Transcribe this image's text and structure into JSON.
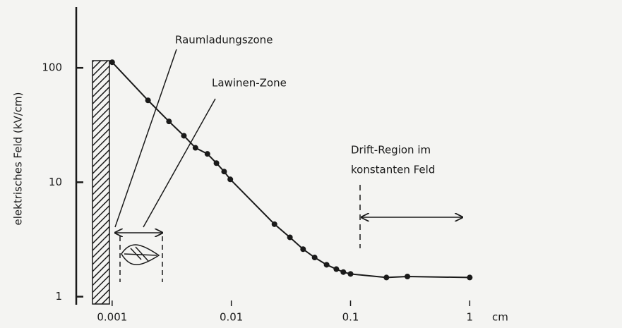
{
  "chart_data": {
    "type": "line",
    "ylabel": "elektrisches Feld (kV/cm)",
    "xlabel": "cm",
    "x": [
      0.001,
      0.002,
      0.003,
      0.004,
      0.005,
      0.0063,
      0.0075,
      0.0087,
      0.0098,
      0.023,
      0.031,
      0.04,
      0.05,
      0.063,
      0.076,
      0.087,
      0.1,
      0.2,
      0.3,
      1
    ],
    "series": [
      {
        "color": "#1a1a1a",
        "values": [
          112,
          52,
          34,
          25.5,
          20,
          17.7,
          14.7,
          12.4,
          10.6,
          4.3,
          3.3,
          2.6,
          2.2,
          1.9,
          1.74,
          1.64,
          1.58,
          1.47,
          1.5,
          1.47
        ]
      }
    ],
    "xlim": [
      0.0005,
      1.4
    ],
    "ylim": [
      0.85,
      340
    ],
    "xticks": [
      0.001,
      0.01,
      0.1,
      1
    ],
    "yticks": [
      1,
      10,
      100
    ],
    "xscale": "log",
    "yscale": "log",
    "grid": false,
    "annotations": [
      "Raumladungszone",
      "Lawinen-Zone",
      "Drift-Region im",
      "konstanten Feld"
    ]
  }
}
